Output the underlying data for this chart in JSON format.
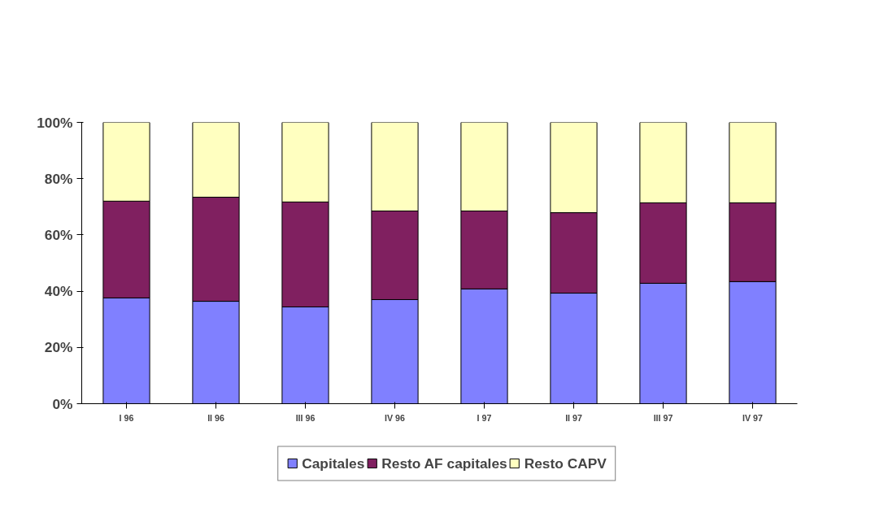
{
  "chart_data": {
    "type": "bar",
    "stacked": true,
    "categories": [
      "I 96",
      "II 96",
      "III 96",
      "IV 96",
      "I 97",
      "II 97",
      "III 97",
      "IV 97"
    ],
    "series": [
      {
        "name": "Capitales",
        "color": "#8080ff",
        "values": [
          37.6,
          36.4,
          34.4,
          37.0,
          40.8,
          39.3,
          42.8,
          43.4
        ]
      },
      {
        "name": "Resto AF capitales",
        "color": "#802060",
        "values": [
          34.4,
          37.0,
          37.3,
          31.5,
          27.7,
          28.6,
          28.6,
          28.0
        ]
      },
      {
        "name": "Resto CAPV",
        "color": "#ffffc0",
        "values": [
          28.0,
          26.6,
          28.3,
          31.5,
          31.5,
          32.1,
          28.6,
          28.6
        ]
      }
    ],
    "ylim": [
      0,
      100
    ],
    "yticks": [
      {
        "value": 0,
        "label": "0%"
      },
      {
        "value": 20,
        "label": "20%"
      },
      {
        "value": 40,
        "label": "40%"
      },
      {
        "value": 60,
        "label": "60%"
      },
      {
        "value": 80,
        "label": "80%"
      },
      {
        "value": 100,
        "label": "100%"
      }
    ],
    "grid": false,
    "legend": "bottom"
  }
}
